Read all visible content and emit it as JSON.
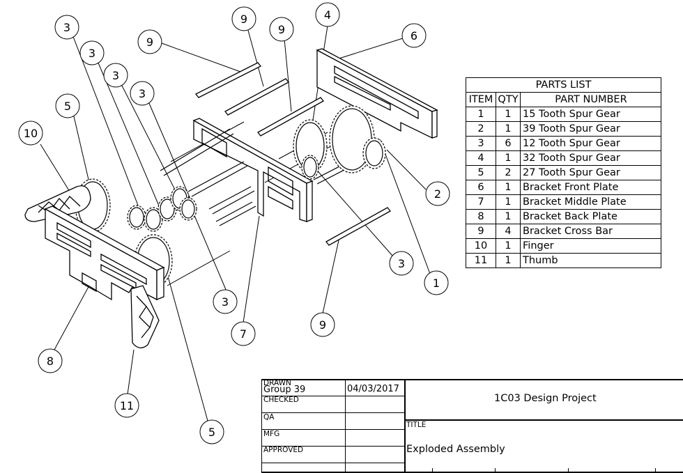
{
  "parts_list": {
    "caption": "PARTS LIST",
    "headers": [
      "ITEM",
      "QTY",
      "PART NUMBER"
    ],
    "rows": [
      {
        "item": "1",
        "qty": "1",
        "part": "15 Tooth Spur Gear"
      },
      {
        "item": "2",
        "qty": "1",
        "part": "39 Tooth Spur Gear"
      },
      {
        "item": "3",
        "qty": "6",
        "part": "12 Tooth Spur Gear"
      },
      {
        "item": "4",
        "qty": "1",
        "part": "32 Tooth Spur Gear"
      },
      {
        "item": "5",
        "qty": "2",
        "part": "27 Tooth Spur Gear"
      },
      {
        "item": "6",
        "qty": "1",
        "part": "Bracket Front Plate"
      },
      {
        "item": "7",
        "qty": "1",
        "part": "Bracket Middle Plate"
      },
      {
        "item": "8",
        "qty": "1",
        "part": "Bracket Back Plate"
      },
      {
        "item": "9",
        "qty": "4",
        "part": "Bracket Cross Bar"
      },
      {
        "item": "10",
        "qty": "1",
        "part": "Finger"
      },
      {
        "item": "11",
        "qty": "1",
        "part": "Thumb"
      }
    ]
  },
  "balloons": [
    "3",
    "3",
    "3",
    "3",
    "9",
    "9",
    "9",
    "4",
    "6",
    "5",
    "10",
    "2",
    "3",
    "1",
    "3",
    "7",
    "9",
    "8",
    "11",
    "5"
  ],
  "title_block": {
    "drawn_label": "DRAWN",
    "drawn_by": "Group 39",
    "drawn_date": "04/03/2017",
    "checked_label": "CHECKED",
    "qa_label": "QA",
    "mfg_label": "MFG",
    "approved_label": "APPROVED",
    "project": "1C03 Design Project",
    "title_label": "TITLE",
    "title": "Exploded Assembly"
  }
}
